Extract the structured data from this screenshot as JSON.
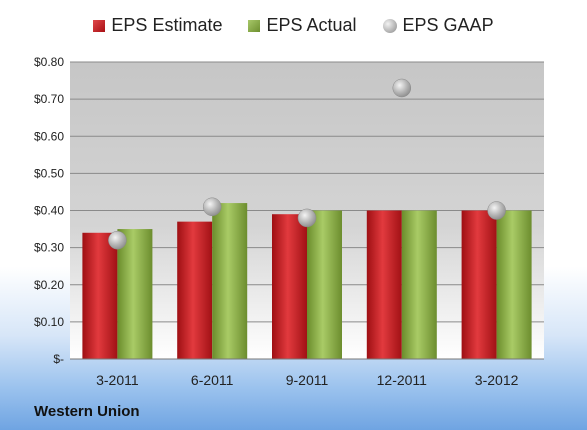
{
  "legend": [
    {
      "label": "EPS Estimate",
      "icon": "bar-swatch-red"
    },
    {
      "label": "EPS Actual",
      "icon": "bar-swatch-green"
    },
    {
      "label": "EPS GAAP",
      "icon": "circle-swatch-gray"
    }
  ],
  "company": "Western Union",
  "colors": {
    "estimate": "#c8191e",
    "actual": "#8db04b",
    "gaap": "#b0b0b0"
  },
  "chart_data": {
    "type": "bar",
    "title": "",
    "xlabel": "",
    "ylabel": "",
    "categories": [
      "3-2011",
      "6-2011",
      "9-2011",
      "12-2011",
      "3-2012"
    ],
    "series": [
      {
        "name": "EPS Estimate",
        "type": "bar",
        "values": [
          0.34,
          0.37,
          0.39,
          0.4,
          0.4
        ]
      },
      {
        "name": "EPS Actual",
        "type": "bar",
        "values": [
          0.35,
          0.42,
          0.4,
          0.4,
          0.4
        ]
      },
      {
        "name": "EPS GAAP",
        "type": "scatter",
        "values": [
          0.32,
          0.41,
          0.38,
          0.73,
          0.4
        ]
      }
    ],
    "ylim": [
      0,
      0.8
    ],
    "yticks": [
      0,
      0.1,
      0.2,
      0.3,
      0.4,
      0.5,
      0.6,
      0.7,
      0.8
    ],
    "ytick_labels": [
      "$-",
      "$0.10",
      "$0.20",
      "$0.30",
      "$0.40",
      "$0.50",
      "$0.60",
      "$0.70",
      "$0.80"
    ],
    "grid": true,
    "legend_position": "top"
  }
}
